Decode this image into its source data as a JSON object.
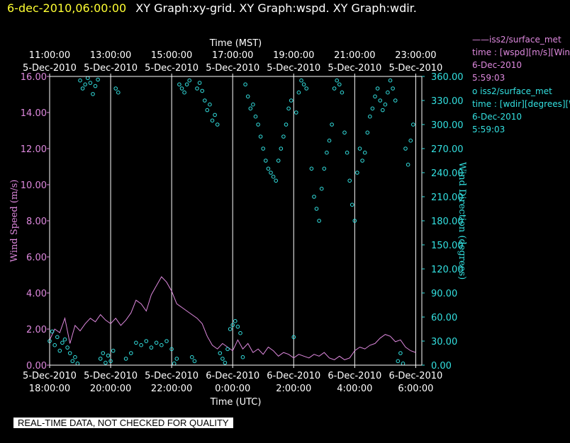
{
  "header": {
    "datetime": "6-dec-2010,06:00:00",
    "graphs": "XY Graph:xy-grid.  XY Graph:wspd.  XY Graph:wdir."
  },
  "legend": {
    "speed": {
      "marker": "——",
      "name": "iss2/surface_met",
      "field": "time : [wspd][m/s][Wind",
      "date": "6-Dec-2010",
      "time": "5:59:03"
    },
    "direction": {
      "marker": "o",
      "name": "iss2/surface_met",
      "field": "time : [wdir][degrees][W",
      "date": "6-Dec-2010",
      "time": "5:59:03"
    }
  },
  "notice": "REAL-TIME DATA, NOT CHECKED FOR QUALITY",
  "colors": {
    "speed": "#dd88dd",
    "direction": "#33e0e0",
    "datetime": "#ffff33",
    "background": "#000000",
    "grid": "#ffffff"
  },
  "chart_data": {
    "type": "line",
    "top_axis_title": "Time (MST)",
    "bottom_axis_title": "Time (UTC)",
    "ylabel": "Wind Speed (m/s)",
    "y2label": "Wind Direction (degrees)",
    "xlim": [
      "2010-12-05 18:00",
      "2010-12-06 06:12"
    ],
    "ylim": [
      0,
      16
    ],
    "y2lim": [
      0,
      360
    ],
    "grid": true,
    "y_ticks": [
      "0.00",
      "2.00",
      "4.00",
      "6.00",
      "8.00",
      "10.00",
      "12.00",
      "14.00",
      "16.00"
    ],
    "y2_ticks": [
      "0.00",
      "30.00",
      "60.00",
      "90.00",
      "120.00",
      "150.00",
      "180.00",
      "210.00",
      "240.00",
      "270.00",
      "300.00",
      "330.00",
      "360.00"
    ],
    "bottom_ticks": [
      {
        "at": "2010-12-05 18:00",
        "date": "5-Dec-2010",
        "time": "18:00:00"
      },
      {
        "at": "2010-12-05 20:00",
        "date": "5-Dec-2010",
        "time": "20:00:00"
      },
      {
        "at": "2010-12-05 22:00",
        "date": "5-Dec-2010",
        "time": "22:00:00"
      },
      {
        "at": "2010-12-06 00:00",
        "date": "6-Dec-2010",
        "time": "0:00:00"
      },
      {
        "at": "2010-12-06 02:00",
        "date": "6-Dec-2010",
        "time": "2:00:00"
      },
      {
        "at": "2010-12-06 04:00",
        "date": "6-Dec-2010",
        "time": "4:00:00"
      },
      {
        "at": "2010-12-06 06:00",
        "date": "6-Dec-2010",
        "time": "6:00:00"
      }
    ],
    "top_ticks": [
      {
        "at": "2010-12-05 18:00",
        "time": "11:00:00",
        "date": "5-Dec-2010"
      },
      {
        "at": "2010-12-05 20:00",
        "time": "13:00:00",
        "date": "5-Dec-2010"
      },
      {
        "at": "2010-12-05 22:00",
        "time": "15:00:00",
        "date": "5-Dec-2010"
      },
      {
        "at": "2010-12-06 00:00",
        "time": "17:00:00",
        "date": "5-Dec-2010"
      },
      {
        "at": "2010-12-06 02:00",
        "time": "19:00:00",
        "date": "5-Dec-2010"
      },
      {
        "at": "2010-12-06 04:00",
        "time": "21:00:00",
        "date": "5-Dec-2010"
      },
      {
        "at": "2010-12-06 06:00",
        "time": "23:00:00",
        "date": "5-Dec-2010"
      }
    ],
    "series": [
      {
        "name": "iss2/surface_met time : [wspd][m/s][Wind",
        "axis": "left",
        "style": "line",
        "points": [
          [
            "2010-12-05 18:00",
            1.4
          ],
          [
            "2010-12-05 18:10",
            2.0
          ],
          [
            "2010-12-05 18:20",
            1.8
          ],
          [
            "2010-12-05 18:30",
            2.6
          ],
          [
            "2010-12-05 18:40",
            1.2
          ],
          [
            "2010-12-05 18:50",
            2.2
          ],
          [
            "2010-12-05 19:00",
            1.9
          ],
          [
            "2010-12-05 19:10",
            2.3
          ],
          [
            "2010-12-05 19:20",
            2.6
          ],
          [
            "2010-12-05 19:30",
            2.4
          ],
          [
            "2010-12-05 19:40",
            2.8
          ],
          [
            "2010-12-05 19:50",
            2.5
          ],
          [
            "2010-12-05 20:00",
            2.3
          ],
          [
            "2010-12-05 20:10",
            2.6
          ],
          [
            "2010-12-05 20:20",
            2.2
          ],
          [
            "2010-12-05 20:30",
            2.5
          ],
          [
            "2010-12-05 20:40",
            2.9
          ],
          [
            "2010-12-05 20:50",
            3.6
          ],
          [
            "2010-12-05 21:00",
            3.4
          ],
          [
            "2010-12-05 21:10",
            3.0
          ],
          [
            "2010-12-05 21:20",
            3.9
          ],
          [
            "2010-12-05 21:30",
            4.4
          ],
          [
            "2010-12-05 21:40",
            4.9
          ],
          [
            "2010-12-05 21:50",
            4.6
          ],
          [
            "2010-12-05 22:00",
            4.1
          ],
          [
            "2010-12-05 22:10",
            3.4
          ],
          [
            "2010-12-05 22:20",
            3.2
          ],
          [
            "2010-12-05 22:30",
            3.0
          ],
          [
            "2010-12-05 22:40",
            2.8
          ],
          [
            "2010-12-05 22:50",
            2.6
          ],
          [
            "2010-12-05 23:00",
            2.3
          ],
          [
            "2010-12-05 23:10",
            1.6
          ],
          [
            "2010-12-05 23:20",
            1.1
          ],
          [
            "2010-12-05 23:30",
            0.9
          ],
          [
            "2010-12-05 23:40",
            1.2
          ],
          [
            "2010-12-05 23:50",
            1.0
          ],
          [
            "2010-12-06 00:00",
            0.8
          ],
          [
            "2010-12-06 00:10",
            1.4
          ],
          [
            "2010-12-06 00:20",
            0.9
          ],
          [
            "2010-12-06 00:30",
            1.2
          ],
          [
            "2010-12-06 00:40",
            0.7
          ],
          [
            "2010-12-06 00:50",
            0.9
          ],
          [
            "2010-12-06 01:00",
            0.6
          ],
          [
            "2010-12-06 01:10",
            1.0
          ],
          [
            "2010-12-06 01:20",
            0.8
          ],
          [
            "2010-12-06 01:30",
            0.5
          ],
          [
            "2010-12-06 01:40",
            0.7
          ],
          [
            "2010-12-06 01:50",
            0.6
          ],
          [
            "2010-12-06 02:00",
            0.4
          ],
          [
            "2010-12-06 02:10",
            0.6
          ],
          [
            "2010-12-06 02:20",
            0.5
          ],
          [
            "2010-12-06 02:30",
            0.4
          ],
          [
            "2010-12-06 02:40",
            0.6
          ],
          [
            "2010-12-06 02:50",
            0.5
          ],
          [
            "2010-12-06 03:00",
            0.7
          ],
          [
            "2010-12-06 03:10",
            0.4
          ],
          [
            "2010-12-06 03:20",
            0.3
          ],
          [
            "2010-12-06 03:30",
            0.5
          ],
          [
            "2010-12-06 03:40",
            0.3
          ],
          [
            "2010-12-06 03:50",
            0.4
          ],
          [
            "2010-12-06 04:00",
            0.8
          ],
          [
            "2010-12-06 04:10",
            1.0
          ],
          [
            "2010-12-06 04:20",
            0.9
          ],
          [
            "2010-12-06 04:30",
            1.1
          ],
          [
            "2010-12-06 04:40",
            1.2
          ],
          [
            "2010-12-06 04:50",
            1.5
          ],
          [
            "2010-12-06 05:00",
            1.7
          ],
          [
            "2010-12-06 05:10",
            1.6
          ],
          [
            "2010-12-06 05:20",
            1.3
          ],
          [
            "2010-12-06 05:30",
            1.4
          ],
          [
            "2010-12-06 05:40",
            1.0
          ],
          [
            "2010-12-06 05:50",
            0.8
          ],
          [
            "2010-12-06 06:00",
            0.7
          ]
        ]
      },
      {
        "name": "iss2/surface_met time : [wdir][degrees][W",
        "axis": "right",
        "style": "markers",
        "points": [
          [
            "2010-12-05 18:00",
            30
          ],
          [
            "2010-12-05 18:05",
            42
          ],
          [
            "2010-12-05 18:10",
            25
          ],
          [
            "2010-12-05 18:15",
            35
          ],
          [
            "2010-12-05 18:20",
            18
          ],
          [
            "2010-12-05 18:25",
            28
          ],
          [
            "2010-12-05 18:30",
            32
          ],
          [
            "2010-12-05 18:35",
            22
          ],
          [
            "2010-12-05 18:40",
            15
          ],
          [
            "2010-12-05 18:45",
            5
          ],
          [
            "2010-12-05 18:50",
            10
          ],
          [
            "2010-12-05 18:55",
            2
          ],
          [
            "2010-12-05 19:00",
            355
          ],
          [
            "2010-12-05 19:05",
            345
          ],
          [
            "2010-12-05 19:10",
            350
          ],
          [
            "2010-12-05 19:15",
            358
          ],
          [
            "2010-12-05 19:20",
            352
          ],
          [
            "2010-12-05 19:25",
            338
          ],
          [
            "2010-12-05 19:30",
            348
          ],
          [
            "2010-12-05 19:35",
            356
          ],
          [
            "2010-12-05 19:40",
            8
          ],
          [
            "2010-12-05 19:45",
            15
          ],
          [
            "2010-12-05 19:50",
            3
          ],
          [
            "2010-12-05 19:55",
            12
          ],
          [
            "2010-12-05 20:00",
            5
          ],
          [
            "2010-12-05 20:05",
            18
          ],
          [
            "2010-12-05 20:10",
            345
          ],
          [
            "2010-12-05 20:15",
            340
          ],
          [
            "2010-12-05 20:30",
            8
          ],
          [
            "2010-12-05 20:40",
            15
          ],
          [
            "2010-12-05 20:50",
            28
          ],
          [
            "2010-12-05 21:00",
            25
          ],
          [
            "2010-12-05 21:10",
            30
          ],
          [
            "2010-12-05 21:20",
            22
          ],
          [
            "2010-12-05 21:30",
            28
          ],
          [
            "2010-12-05 21:40",
            25
          ],
          [
            "2010-12-05 21:50",
            30
          ],
          [
            "2010-12-05 22:00",
            20
          ],
          [
            "2010-12-05 22:05",
            2
          ],
          [
            "2010-12-05 22:10",
            8
          ],
          [
            "2010-12-05 22:15",
            350
          ],
          [
            "2010-12-05 22:20",
            345
          ],
          [
            "2010-12-05 22:25",
            340
          ],
          [
            "2010-12-05 22:30",
            350
          ],
          [
            "2010-12-05 22:35",
            355
          ],
          [
            "2010-12-05 22:40",
            10
          ],
          [
            "2010-12-05 22:45",
            5
          ],
          [
            "2010-12-05 22:50",
            345
          ],
          [
            "2010-12-05 22:55",
            352
          ],
          [
            "2010-12-05 23:00",
            342
          ],
          [
            "2010-12-05 23:05",
            330
          ],
          [
            "2010-12-05 23:10",
            318
          ],
          [
            "2010-12-05 23:15",
            325
          ],
          [
            "2010-12-05 23:20",
            305
          ],
          [
            "2010-12-05 23:25",
            312
          ],
          [
            "2010-12-05 23:30",
            300
          ],
          [
            "2010-12-05 23:35",
            15
          ],
          [
            "2010-12-05 23:40",
            8
          ],
          [
            "2010-12-05 23:45",
            3
          ],
          [
            "2010-12-05 23:50",
            20
          ],
          [
            "2010-12-05 23:55",
            45
          ],
          [
            "2010-12-06 00:00",
            50
          ],
          [
            "2010-12-06 00:05",
            55
          ],
          [
            "2010-12-06 00:10",
            48
          ],
          [
            "2010-12-06 00:15",
            40
          ],
          [
            "2010-12-06 00:20",
            10
          ],
          [
            "2010-12-06 00:25",
            350
          ],
          [
            "2010-12-06 00:30",
            335
          ],
          [
            "2010-12-06 00:35",
            320
          ],
          [
            "2010-12-06 00:40",
            325
          ],
          [
            "2010-12-06 00:45",
            310
          ],
          [
            "2010-12-06 00:50",
            300
          ],
          [
            "2010-12-06 00:55",
            285
          ],
          [
            "2010-12-06 01:00",
            270
          ],
          [
            "2010-12-06 01:05",
            255
          ],
          [
            "2010-12-06 01:10",
            245
          ],
          [
            "2010-12-06 01:15",
            240
          ],
          [
            "2010-12-06 01:20",
            235
          ],
          [
            "2010-12-06 01:25",
            230
          ],
          [
            "2010-12-06 01:30",
            255
          ],
          [
            "2010-12-06 01:35",
            270
          ],
          [
            "2010-12-06 01:40",
            285
          ],
          [
            "2010-12-06 01:45",
            300
          ],
          [
            "2010-12-06 01:50",
            320
          ],
          [
            "2010-12-06 01:55",
            330
          ],
          [
            "2010-12-06 02:00",
            35
          ],
          [
            "2010-12-06 02:05",
            315
          ],
          [
            "2010-12-06 02:10",
            340
          ],
          [
            "2010-12-06 02:15",
            355
          ],
          [
            "2010-12-06 02:20",
            350
          ],
          [
            "2010-12-06 02:25",
            345
          ],
          [
            "2010-12-06 02:35",
            245
          ],
          [
            "2010-12-06 02:40",
            210
          ],
          [
            "2010-12-06 02:45",
            195
          ],
          [
            "2010-12-06 02:50",
            180
          ],
          [
            "2010-12-06 02:55",
            220
          ],
          [
            "2010-12-06 03:00",
            245
          ],
          [
            "2010-12-06 03:05",
            265
          ],
          [
            "2010-12-06 03:10",
            280
          ],
          [
            "2010-12-06 03:15",
            300
          ],
          [
            "2010-12-06 03:20",
            345
          ],
          [
            "2010-12-06 03:25",
            355
          ],
          [
            "2010-12-06 03:30",
            350
          ],
          [
            "2010-12-06 03:35",
            340
          ],
          [
            "2010-12-06 03:40",
            290
          ],
          [
            "2010-12-06 03:45",
            265
          ],
          [
            "2010-12-06 03:50",
            230
          ],
          [
            "2010-12-06 03:55",
            200
          ],
          [
            "2010-12-06 04:00",
            180
          ],
          [
            "2010-12-06 04:05",
            240
          ],
          [
            "2010-12-06 04:10",
            270
          ],
          [
            "2010-12-06 04:15",
            255
          ],
          [
            "2010-12-06 04:20",
            265
          ],
          [
            "2010-12-06 04:25",
            290
          ],
          [
            "2010-12-06 04:30",
            310
          ],
          [
            "2010-12-06 04:35",
            320
          ],
          [
            "2010-12-06 04:40",
            335
          ],
          [
            "2010-12-06 04:45",
            345
          ],
          [
            "2010-12-06 04:50",
            330
          ],
          [
            "2010-12-06 04:55",
            318
          ],
          [
            "2010-12-06 05:00",
            325
          ],
          [
            "2010-12-06 05:05",
            340
          ],
          [
            "2010-12-06 05:10",
            355
          ],
          [
            "2010-12-06 05:15",
            345
          ],
          [
            "2010-12-06 05:20",
            330
          ],
          [
            "2010-12-06 05:25",
            5
          ],
          [
            "2010-12-06 05:30",
            15
          ],
          [
            "2010-12-06 05:35",
            2
          ],
          [
            "2010-12-06 05:40",
            270
          ],
          [
            "2010-12-06 05:45",
            250
          ],
          [
            "2010-12-06 05:50",
            280
          ],
          [
            "2010-12-06 05:55",
            300
          ]
        ]
      }
    ]
  }
}
